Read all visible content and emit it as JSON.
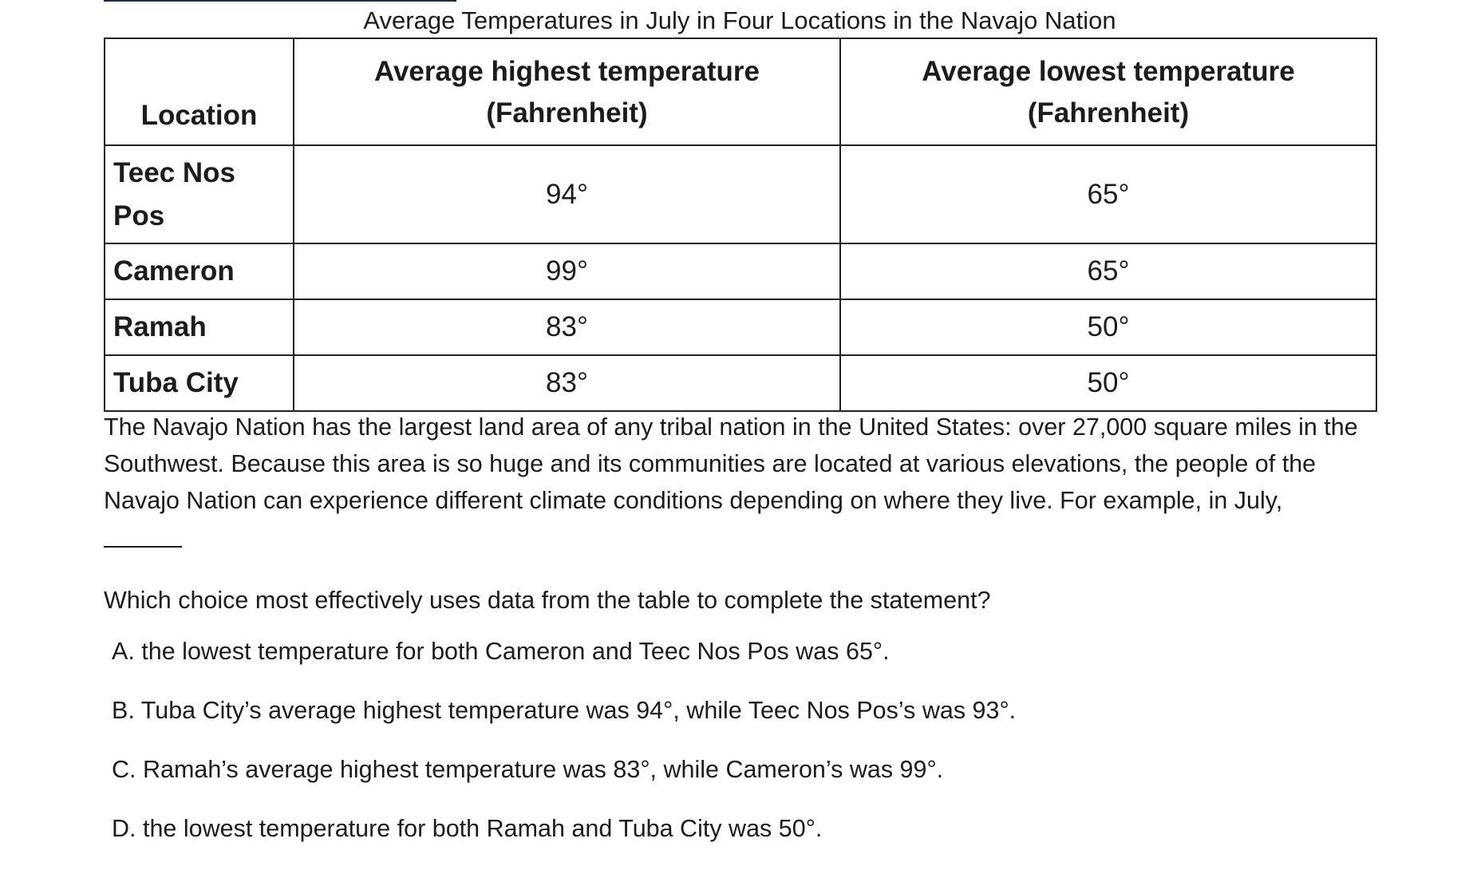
{
  "table": {
    "caption": "Average Temperatures in July in Four Locations in the Navajo Nation",
    "headers": {
      "location": "Location",
      "high_line1": "Average highest temperature",
      "high_line2": "(Fahrenheit)",
      "low_line1": "Average lowest temperature",
      "low_line2": "(Fahrenheit)"
    },
    "rows": [
      {
        "location": "Teec Nos Pos",
        "high": "94°",
        "low": "65°"
      },
      {
        "location": "Cameron",
        "high": "99°",
        "low": "65°"
      },
      {
        "location": "Ramah",
        "high": "83°",
        "low": "50°"
      },
      {
        "location": "Tuba City",
        "high": "83°",
        "low": "50°"
      }
    ]
  },
  "passage": "The Navajo Nation has the largest land area of any tribal nation in the United States: over 27,000 square miles in the Southwest. Because this area is so huge and its communities are located at various elevations, the people of the Navajo Nation can experience different climate conditions depending on where they live. For example, in July,",
  "question": "Which choice most effectively uses data from the table to complete the statement?",
  "choices": [
    "A. the lowest temperature for both Cameron and Teec Nos Pos was 65°.",
    "B. Tuba City’s average highest temperature was 94°, while Teec Nos Pos’s was 93°.",
    "C. Ramah’s average highest temperature was 83°, while Cameron’s was 99°.",
    "D. the lowest temperature for both Ramah and Tuba City was 50°."
  ]
}
